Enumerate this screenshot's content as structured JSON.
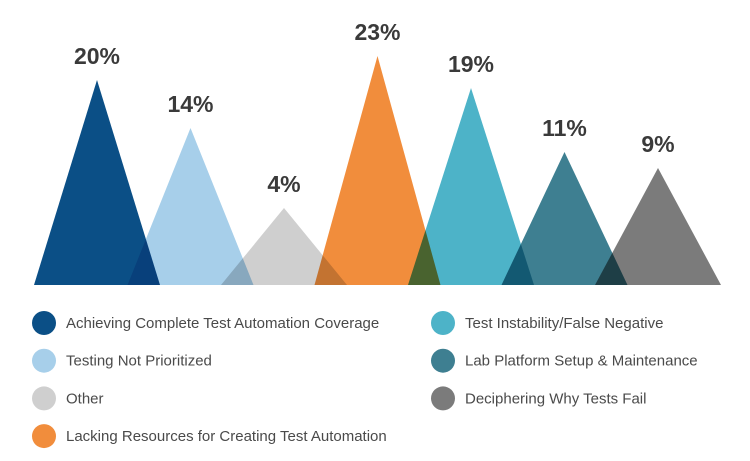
{
  "chart_data": {
    "type": "pictorial-triangle",
    "categories": [
      "Achieving Complete Test Automation Coverage",
      "Testing Not Prioritized",
      "Other",
      "Lacking Resources for Creating Test Automation",
      "Test Instability/False Negative",
      "Lab Platform Setup & Maintenance",
      "Deciphering Why Tests Fail"
    ],
    "values": [
      20,
      14,
      4,
      23,
      19,
      11,
      9
    ],
    "value_labels": [
      "20%",
      "14%",
      "4%",
      "23%",
      "19%",
      "11%",
      "9%"
    ],
    "colors": [
      "#0b4f86",
      "#a7cfea",
      "#cfcfcf",
      "#f18d3c",
      "#4db3c8",
      "#3e7f91",
      "#7b7b7b"
    ]
  }
}
